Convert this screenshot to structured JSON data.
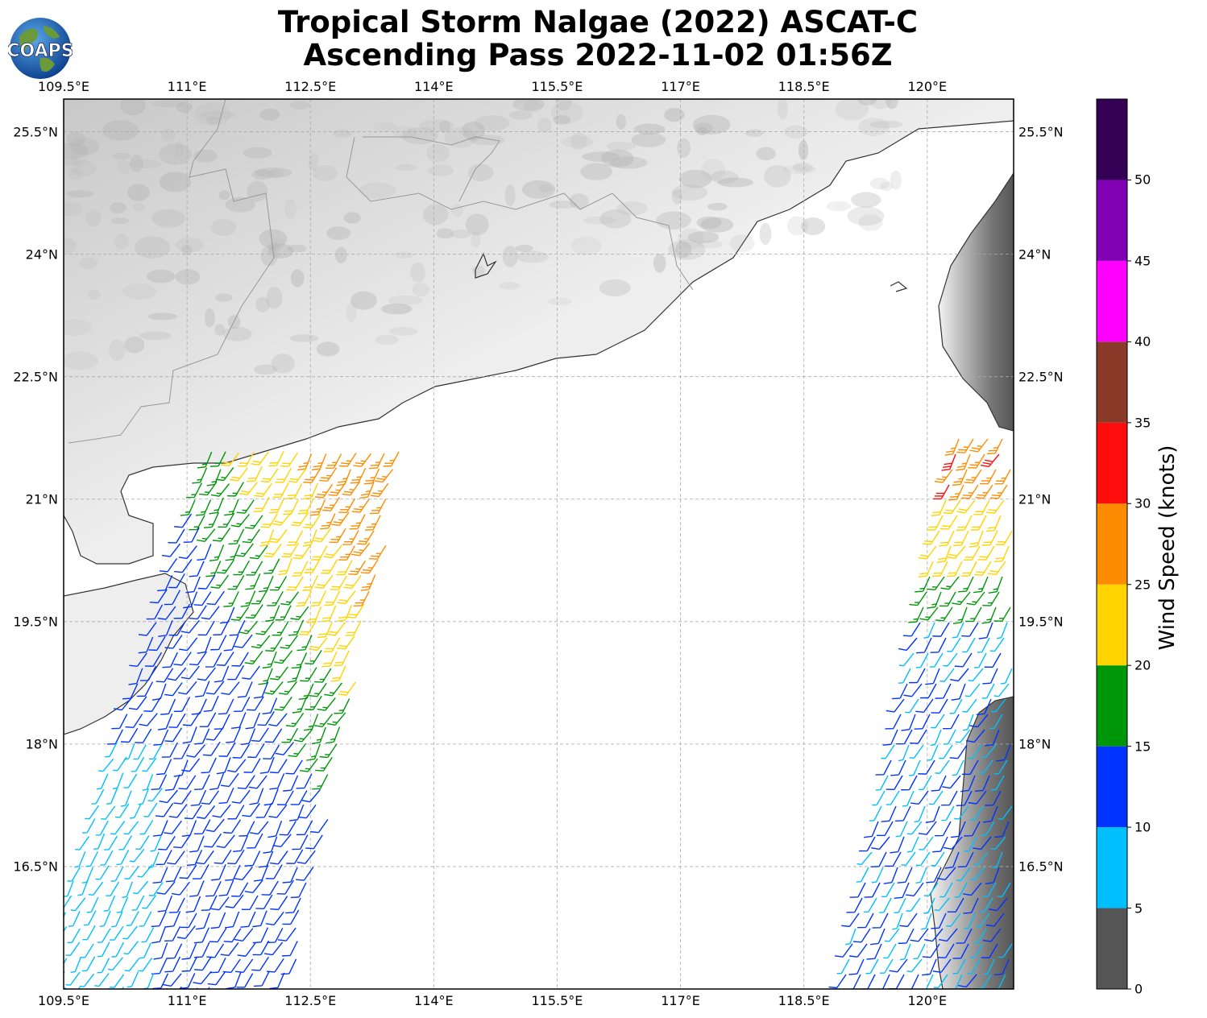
{
  "title": {
    "line1": "Tropical Storm Nalgae (2022) ASCAT-C",
    "line2": "Ascending Pass 2022-11-02 01:56Z"
  },
  "logo": {
    "text": "COAPS",
    "icon": "globe-icon"
  },
  "map": {
    "lon_range": [
      109.5,
      121.05
    ],
    "lat_range": [
      15.0,
      25.9
    ],
    "lon_ticks": [
      "109.5°E",
      "111°E",
      "112.5°E",
      "114°E",
      "115.5°E",
      "117°E",
      "118.5°E",
      "120°E"
    ],
    "lat_ticks": [
      "25.5°N",
      "24°N",
      "22.5°N",
      "21°N",
      "19.5°N",
      "18°N",
      "16.5°N"
    ],
    "grid": true
  },
  "colorbar": {
    "title": "Wind Speed (knots)",
    "ticks": [
      "0",
      "5",
      "10",
      "15",
      "20",
      "25",
      "30",
      "35",
      "40",
      "45",
      "50"
    ],
    "bins": [
      {
        "range": [
          0,
          5
        ],
        "color": "#555555"
      },
      {
        "range": [
          5,
          10
        ],
        "color": "#00bfff"
      },
      {
        "range": [
          10,
          15
        ],
        "color": "#0033ff"
      },
      {
        "range": [
          15,
          20
        ],
        "color": "#00960a"
      },
      {
        "range": [
          20,
          25
        ],
        "color": "#ffd400"
      },
      {
        "range": [
          25,
          30
        ],
        "color": "#ff8c00"
      },
      {
        "range": [
          30,
          35
        ],
        "color": "#ff0d0d"
      },
      {
        "range": [
          35,
          40
        ],
        "color": "#8b3a2a"
      },
      {
        "range": [
          40,
          45
        ],
        "color": "#ff00ff"
      },
      {
        "range": [
          45,
          50
        ],
        "color": "#8000b4"
      },
      {
        "range": [
          50,
          55
        ],
        "color": "#330055"
      }
    ]
  }
}
